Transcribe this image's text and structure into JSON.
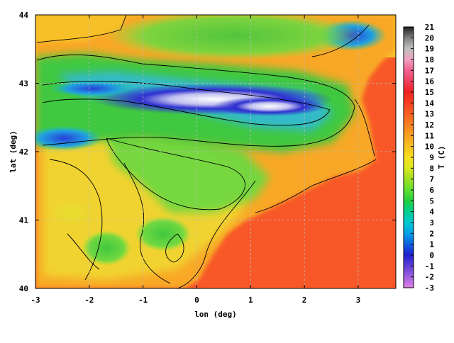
{
  "chart_data": {
    "type": "heatmap",
    "title": "",
    "xlabel": "lon (deg)",
    "ylabel": "lat (deg)",
    "xlim": [
      -3,
      3.7
    ],
    "ylim": [
      40,
      44
    ],
    "xticks": [
      "-3",
      "-2",
      "-1",
      "0",
      "1",
      "2",
      "3"
    ],
    "yticks": [
      "40",
      "41",
      "42",
      "43",
      "44"
    ],
    "grid": true,
    "contours": true,
    "colorbar": {
      "label": "T (C)",
      "min": -3,
      "max": 21,
      "ticks": [
        "-3",
        "-2",
        "-1",
        "0",
        "1",
        "2",
        "3",
        "4",
        "5",
        "6",
        "7",
        "8",
        "9",
        "10",
        "11",
        "12",
        "13",
        "14",
        "15",
        "16",
        "17",
        "18",
        "19",
        "20",
        "21"
      ],
      "placement": "right",
      "colors": [
        "#e080e8",
        "#a060e0",
        "#6040d8",
        "#2020d0",
        "#1060e0",
        "#00a0e8",
        "#00c8d0",
        "#00d090",
        "#20d040",
        "#60e030",
        "#a0e020",
        "#d8e820",
        "#f8e020",
        "#f8c020",
        "#f8a020",
        "#f88020",
        "#f86020",
        "#f84020",
        "#f02020",
        "#f04060",
        "#f06090",
        "#f0a0c0",
        "#c0c0c0",
        "#808080",
        "#202020"
      ]
    },
    "regions": {
      "sea_temperature": 15,
      "lowland_temperature": 12,
      "plateau_temperature": 7,
      "mountain_temperature": 0
    }
  }
}
